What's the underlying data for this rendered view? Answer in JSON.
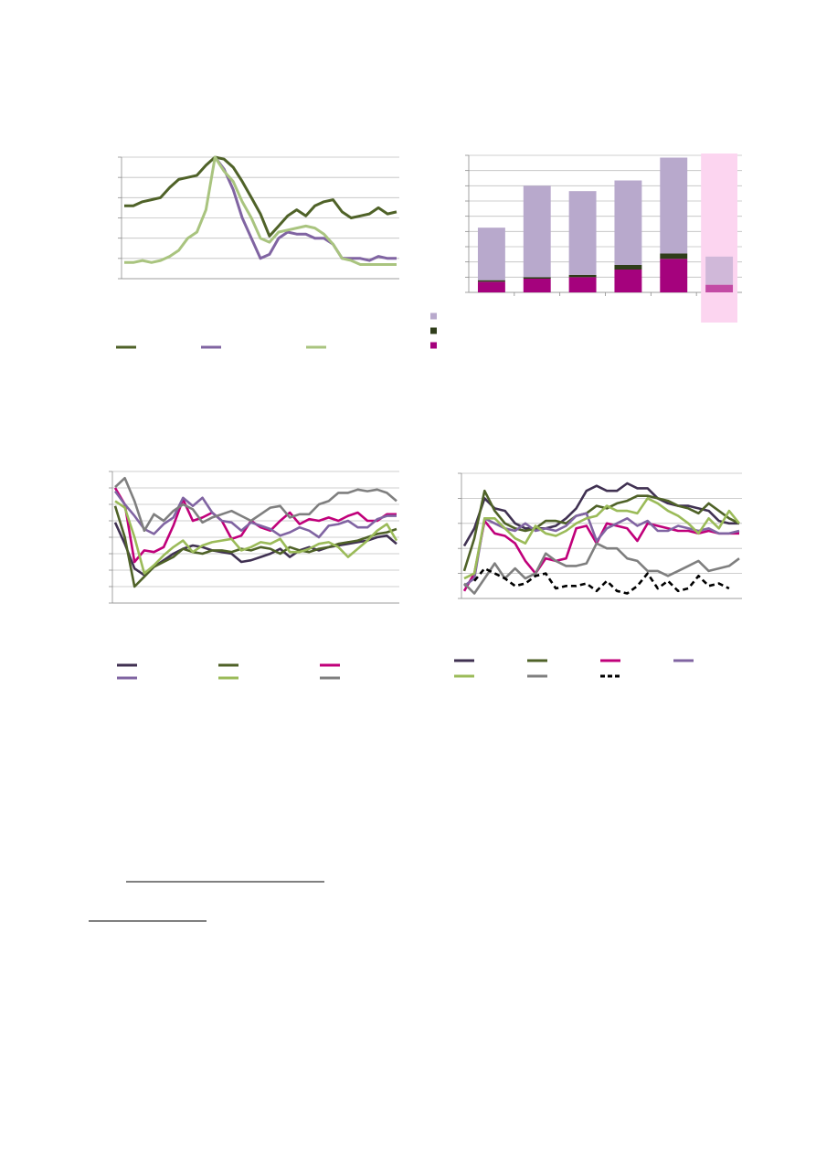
{
  "chart_data": [
    {
      "type": "line",
      "ylim": [
        0,
        6
      ],
      "yticks": [
        0,
        1,
        2,
        3,
        4,
        5,
        6
      ],
      "grid": true,
      "series": [
        {
          "color": "#4f6228",
          "values": [
            3.6,
            3.6,
            3.8,
            3.9,
            4.0,
            4.5,
            4.9,
            5.0,
            5.1,
            5.6,
            6.0,
            5.9,
            5.5,
            4.8,
            4.0,
            3.2,
            2.1,
            2.6,
            3.1,
            3.4,
            3.1,
            3.6,
            3.8,
            3.9,
            3.3,
            3.0,
            3.1,
            3.2,
            3.5,
            3.2,
            3.3
          ]
        },
        {
          "color": "#8064a2",
          "values": [
            null,
            null,
            null,
            null,
            null,
            null,
            null,
            null,
            null,
            null,
            6.0,
            5.4,
            4.4,
            3.0,
            2.0,
            1.0,
            1.2,
            2.0,
            2.3,
            2.2,
            2.2,
            2.0,
            2.0,
            1.7,
            1.0,
            1.0,
            1.0,
            0.9,
            1.1,
            1.0,
            1.0
          ]
        },
        {
          "color": "#a9c47f",
          "values": [
            0.8,
            0.8,
            0.9,
            0.8,
            0.9,
            1.1,
            1.4,
            2.0,
            2.3,
            3.4,
            6.0,
            5.3,
            4.8,
            3.8,
            3.0,
            2.0,
            1.8,
            2.3,
            2.4,
            2.5,
            2.6,
            2.5,
            2.2,
            1.7,
            1.0,
            0.9,
            0.7,
            0.7,
            0.7,
            0.7,
            0.7
          ]
        }
      ]
    },
    {
      "type": "stacked-bar",
      "ylim": [
        0,
        9
      ],
      "yticks": [
        0,
        1,
        2,
        3,
        4,
        5,
        6,
        7,
        8,
        9
      ],
      "grid": true,
      "highlight": {
        "index": 5,
        "color": "#fcd5f0"
      },
      "series": [
        {
          "color": "#a5027d",
          "values": [
            0.7,
            0.9,
            1.0,
            1.5,
            2.2,
            0.5
          ]
        },
        {
          "color": "#2f3d1a",
          "values": [
            0.1,
            0.1,
            0.15,
            0.3,
            0.35,
            0
          ]
        },
        {
          "color": "#b8a9cc",
          "values": [
            3.45,
            6.0,
            5.5,
            5.55,
            6.3,
            1.85
          ]
        }
      ]
    },
    {
      "type": "line",
      "ylim": [
        0,
        8
      ],
      "yticks": [
        0,
        1,
        2,
        3,
        4,
        5,
        6,
        7,
        8
      ],
      "grid": true,
      "series": [
        {
          "color": "#403152",
          "values": [
            4.9,
            3.6,
            2.1,
            1.7,
            2.2,
            2.6,
            3.0,
            3.3,
            3.5,
            3.4,
            3.2,
            3.1,
            3.0,
            2.5,
            2.6,
            2.8,
            3.0,
            3.3,
            2.8,
            3.2,
            3.4,
            3.2,
            3.4,
            3.5,
            3.6,
            3.7,
            3.8,
            4.0,
            4.1,
            3.6
          ]
        },
        {
          "color": "#4f6228",
          "values": [
            5.9,
            4.0,
            1.0,
            1.6,
            2.2,
            2.5,
            2.8,
            3.3,
            3.1,
            3.0,
            3.2,
            3.2,
            3.1,
            3.3,
            3.2,
            3.4,
            3.3,
            3.0,
            3.4,
            3.2,
            3.1,
            3.3,
            3.4,
            3.6,
            3.7,
            3.8,
            4.0,
            4.2,
            4.3,
            4.5
          ]
        },
        {
          "color": "#c0007a",
          "values": [
            7.0,
            6.0,
            2.5,
            3.2,
            3.1,
            3.4,
            4.7,
            6.3,
            5.0,
            5.2,
            5.5,
            5.0,
            3.9,
            4.1,
            5.0,
            4.6,
            4.4,
            5.0,
            5.5,
            4.8,
            5.1,
            5.0,
            5.2,
            5.0,
            5.3,
            5.5,
            5.0,
            5.0,
            5.4,
            5.4
          ]
        },
        {
          "color": "#8064a2",
          "values": [
            6.8,
            6.0,
            5.3,
            4.5,
            4.2,
            4.8,
            5.2,
            6.4,
            5.9,
            6.4,
            5.5,
            5.0,
            4.9,
            4.4,
            4.9,
            4.7,
            4.5,
            4.1,
            4.3,
            4.6,
            4.4,
            4.0,
            4.7,
            4.8,
            5.0,
            4.6,
            4.6,
            5.1,
            5.3,
            5.3
          ]
        },
        {
          "color": "#9bbb59",
          "values": [
            6.2,
            5.8,
            4.0,
            1.8,
            2.3,
            2.9,
            3.4,
            3.8,
            3.1,
            3.5,
            3.7,
            3.8,
            3.9,
            3.2,
            3.4,
            3.7,
            3.6,
            3.9,
            3.1,
            3.1,
            3.3,
            3.6,
            3.7,
            3.4,
            2.8,
            3.3,
            3.8,
            4.4,
            4.8,
            3.8
          ]
        },
        {
          "color": "#7f7f7f",
          "values": [
            7.05,
            7.6,
            6.2,
            4.4,
            5.4,
            5.0,
            5.6,
            6.0,
            5.7,
            4.9,
            5.2,
            5.4,
            5.6,
            5.3,
            5.0,
            5.4,
            5.8,
            5.9,
            5.2,
            5.4,
            5.4,
            6.0,
            6.2,
            6.7,
            6.7,
            6.9,
            6.8,
            6.9,
            6.7,
            6.2
          ]
        }
      ]
    },
    {
      "type": "line",
      "ylim": [
        0,
        5
      ],
      "yticks": [
        0,
        1,
        2,
        3,
        4,
        5
      ],
      "grid": true,
      "series": [
        {
          "color": "#403152",
          "values": [
            2.1,
            2.8,
            4.0,
            3.6,
            3.5,
            3.0,
            2.8,
            2.8,
            2.8,
            2.9,
            3.2,
            3.6,
            4.3,
            4.5,
            4.3,
            4.3,
            4.6,
            4.4,
            4.4,
            4.0,
            3.8,
            3.7,
            3.7,
            3.6,
            3.5,
            3.1,
            3.0,
            3.0
          ]
        },
        {
          "color": "#4f6228",
          "values": [
            1.1,
            2.4,
            4.3,
            3.5,
            3.0,
            2.8,
            2.7,
            2.8,
            3.1,
            3.1,
            3.0,
            3.3,
            3.4,
            3.7,
            3.6,
            3.8,
            3.9,
            4.1,
            4.1,
            4.0,
            3.9,
            3.7,
            3.6,
            3.4,
            3.8,
            3.5,
            3.2,
            3.0
          ]
        },
        {
          "color": "#c0007a",
          "values": [
            0.3,
            1.0,
            3.1,
            2.6,
            2.5,
            2.2,
            1.5,
            1.0,
            1.6,
            1.5,
            1.6,
            2.8,
            2.9,
            2.2,
            3.0,
            2.9,
            2.8,
            2.3,
            3.0,
            2.9,
            2.8,
            2.7,
            2.7,
            2.6,
            2.7,
            2.6,
            2.6,
            2.6
          ]
        },
        {
          "color": "#8064a2",
          "values": [
            0.5,
            0.8,
            3.2,
            3.0,
            2.8,
            2.7,
            3.0,
            2.7,
            2.8,
            2.7,
            2.9,
            3.3,
            3.4,
            2.3,
            2.8,
            3.0,
            3.2,
            2.9,
            3.1,
            2.7,
            2.7,
            2.9,
            2.8,
            2.7,
            2.8,
            2.6,
            2.6,
            2.7
          ]
        },
        {
          "color": "#9bbb59",
          "values": [
            0.8,
            1.0,
            3.2,
            3.2,
            2.8,
            2.4,
            2.2,
            2.9,
            2.6,
            2.5,
            2.7,
            3.0,
            3.2,
            3.3,
            3.7,
            3.5,
            3.5,
            3.4,
            4.0,
            3.8,
            3.5,
            3.3,
            3.0,
            2.6,
            3.2,
            2.8,
            3.5,
            3.0
          ]
        },
        {
          "color": "#7f7f7f",
          "values": [
            0.6,
            0.2,
            0.8,
            1.4,
            0.8,
            1.2,
            0.8,
            1.0,
            1.8,
            1.5,
            1.3,
            1.3,
            1.4,
            2.2,
            2.0,
            2.0,
            1.6,
            1.5,
            1.1,
            1.1,
            0.9,
            1.1,
            1.3,
            1.5,
            1.1,
            1.2,
            1.3,
            1.6
          ]
        },
        {
          "color": "#000000",
          "dashed": true,
          "values": [
            null,
            0.7,
            1.2,
            1.0,
            0.8,
            0.5,
            0.6,
            0.9,
            1.0,
            0.4,
            0.5,
            0.5,
            0.6,
            0.3,
            0.7,
            0.3,
            0.2,
            0.5,
            1.0,
            0.4,
            0.7,
            0.3,
            0.4,
            0.9,
            0.5,
            0.6,
            0.4,
            null
          ]
        }
      ]
    }
  ]
}
